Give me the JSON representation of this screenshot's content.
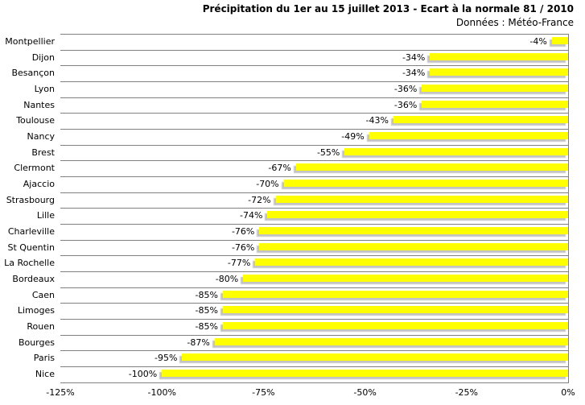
{
  "header": {
    "title": "Précipitation du 1er au 15 juillet 2013 - Ecart à la normale 81 / 2010",
    "subtitle": "Données : Météo-France"
  },
  "colors": {
    "bar": "#FFFF00",
    "bar_shadow": "#7d7d7d",
    "gridline": "#808080",
    "text": "#000000",
    "background": "#ffffff"
  },
  "chart_data": {
    "type": "bar",
    "orientation": "horizontal",
    "title": "Précipitation du 1er au 15 juillet 2013 - Ecart à la normale 81 / 2010",
    "subtitle": "Données : Météo-France",
    "categories": [
      "Montpellier",
      "Dijon",
      "Besançon",
      "Lyon",
      "Nantes",
      "Toulouse",
      "Nancy",
      "Brest",
      "Clermont",
      "Ajaccio",
      "Strasbourg",
      "Lille",
      "Charleville",
      "St Quentin",
      "La Rochelle",
      "Bordeaux",
      "Caen",
      "Limoges",
      "Rouen",
      "Bourges",
      "Paris",
      "Nice"
    ],
    "values": [
      -4,
      -34,
      -34,
      -36,
      -36,
      -43,
      -49,
      -55,
      -67,
      -70,
      -72,
      -74,
      -76,
      -76,
      -77,
      -80,
      -85,
      -85,
      -85,
      -87,
      -95,
      -100
    ],
    "data_labels": [
      "-4%",
      "-34%",
      "-34%",
      "-36%",
      "-36%",
      "-43%",
      "-49%",
      "-55%",
      "-67%",
      "-70%",
      "-72%",
      "-74%",
      "-76%",
      "-76%",
      "-77%",
      "-80%",
      "-85%",
      "-85%",
      "-85%",
      "-87%",
      "-95%",
      "-100%"
    ],
    "xlabel": "",
    "ylabel": "",
    "xlim": [
      -125,
      0
    ],
    "x_ticks": [
      -125,
      -100,
      -75,
      -50,
      -25,
      0
    ],
    "x_tick_labels": [
      "-125%",
      "-100%",
      "-75%",
      "-50%",
      "-25%",
      "0%"
    ],
    "grid": "category-separators-horizontal",
    "legend_position": "none"
  }
}
